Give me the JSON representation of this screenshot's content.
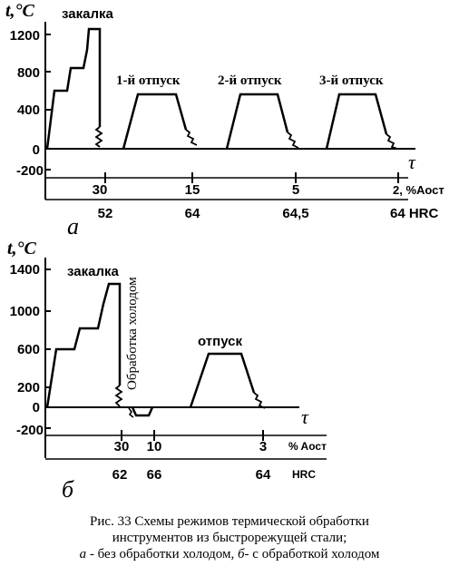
{
  "diagram_a": {
    "y_axis_label": "t,°C",
    "y_ticks": [
      "1200",
      "800",
      "400",
      "0",
      "-200"
    ],
    "x_axis_label": "τ",
    "stage_labels": [
      "закалка",
      "1-й отпуск",
      "2-й отпуск",
      "3-й отпуск"
    ],
    "austenite_values": [
      "30",
      "15",
      "5",
      "2, %Aост"
    ],
    "hrc_values": [
      "52",
      "64",
      "64,5",
      "64 HRC"
    ],
    "panel_letter": "а"
  },
  "diagram_b": {
    "y_axis_label": "t,°C",
    "y_ticks": [
      "1400",
      "1000",
      "600",
      "200",
      "0",
      "-200"
    ],
    "x_axis_label": "τ",
    "stage_labels": [
      "закалка",
      "Обработка холодом",
      "отпуск"
    ],
    "austenite_values": [
      "30",
      "10",
      "3",
      "% Aост"
    ],
    "hrc_values": [
      "62",
      "66",
      "64",
      "HRC"
    ],
    "panel_letter": "б"
  },
  "caption": {
    "line1": "Рис. 33 Схемы режимов термической обработки",
    "line2": "инструментов из быстрорежущей стали;",
    "line3_a": "а",
    "line3_text_a": " - без обработки холодом, ",
    "line3_b": "б",
    "line3_text_b": "- с обработкой холодом"
  }
}
